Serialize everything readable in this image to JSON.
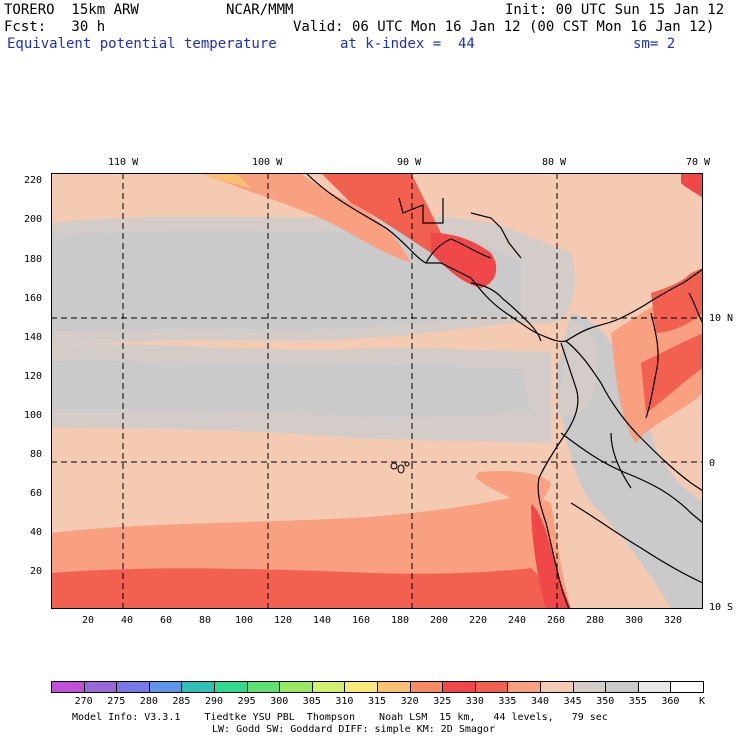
{
  "header": {
    "model": "TORERO  15km ARW",
    "center": "NCAR/MMM",
    "init": "Init: 00 UTC Sun 15 Jan 12",
    "fcst": "Fcst:   30 h",
    "valid": "Valid: 06 UTC Mon 16 Jan 12 (00 CST Mon 16 Jan 12)",
    "field": "Equivalent potential temperature",
    "level": "at k-index =  44",
    "smooth": "sm= 2"
  },
  "map": {
    "lon_labels": [
      "110 W",
      "100 W",
      "90 W",
      "80 W",
      "70 W"
    ],
    "lat_labels": [
      "10 N",
      "0",
      "10 S"
    ],
    "grid_y_labels": [
      "220",
      "200",
      "180",
      "160",
      "140",
      "120",
      "100",
      "80",
      "60",
      "40",
      "20"
    ],
    "grid_x_labels": [
      "20",
      "40",
      "60",
      "80",
      "100",
      "120",
      "140",
      "160",
      "180",
      "200",
      "220",
      "240",
      "260",
      "280",
      "300",
      "320"
    ]
  },
  "colorbar": {
    "unit": "K",
    "labels": [
      "270",
      "275",
      "280",
      "285",
      "290",
      "295",
      "300",
      "305",
      "310",
      "315",
      "320",
      "325",
      "330",
      "335",
      "340",
      "345",
      "350",
      "355",
      "360"
    ],
    "colors": [
      "#c050d8",
      "#9a68d8",
      "#7878e8",
      "#5d95e8",
      "#30c0b8",
      "#30d890",
      "#60e070",
      "#98e860",
      "#d0f070",
      "#f8e878",
      "#f8c070",
      "#f88c60",
      "#f04848",
      "#f26050",
      "#f8a080",
      "#f4cbb2",
      "#d4ccc8",
      "#cacaca",
      "#e8e8e8",
      "#ffffff"
    ]
  },
  "footer": {
    "line1": "Model Info: V3.3.1    Tiedtke YSU PBL  Thompson    Noah LSM  15 km,   44 levels,   79 sec",
    "line2": "LW: Godd SW: Goddard DIFF: simple KM: 2D Smagor"
  }
}
